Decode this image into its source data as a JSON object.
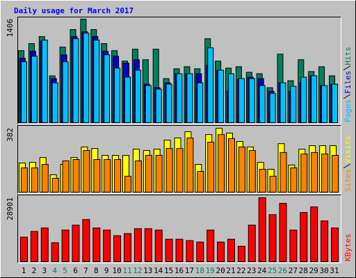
{
  "title": "Daily usage for March 2017",
  "chart_data": [
    {
      "type": "bar",
      "ylim": [
        0,
        1406
      ],
      "yticks": [
        1406
      ],
      "series": [
        {
          "name": "Hits",
          "color": "#00805c",
          "values": [
            978,
            1074,
            1169,
            636,
            1026,
            1264,
            1406,
            1264,
            1074,
            978,
            836,
            998,
            855,
            998,
            598,
            732,
            760,
            732,
            1140,
            836,
            741,
            760,
            684,
            665,
            475,
            931,
            570,
            855,
            694,
            760,
            636
          ]
        },
        {
          "name": "Files",
          "color": "#0000d0",
          "values": [
            874,
            969,
            1112,
            598,
            922,
            1169,
            1235,
            1169,
            969,
            903,
            808,
            855,
            523,
            475,
            542,
            665,
            665,
            665,
            779,
            713,
            428,
            589,
            618,
            598,
            428,
            542,
            428,
            542,
            637,
            504,
            523
          ]
        },
        {
          "name": "Pages",
          "color": "#00c0ff",
          "values": [
            827,
            903,
            1121,
            541,
            827,
            1140,
            1216,
            1121,
            922,
            741,
            618,
            713,
            504,
            456,
            523,
            665,
            665,
            541,
            1017,
            713,
            665,
            599,
            599,
            504,
            399,
            541,
            494,
            618,
            637,
            504,
            523
          ]
        }
      ]
    },
    {
      "type": "bar",
      "ylim": [
        0,
        382
      ],
      "yticks": [
        382
      ],
      "series": [
        {
          "name": "Visits",
          "color": "#ffff00",
          "values": [
            174,
            178,
            207,
            104,
            166,
            207,
            270,
            261,
            220,
            220,
            220,
            257,
            249,
            257,
            311,
            324,
            361,
            166,
            344,
            382,
            353,
            303,
            270,
            178,
            137,
            290,
            162,
            257,
            278,
            278,
            278
          ]
        },
        {
          "name": "Sites",
          "color": "#ff8000",
          "values": [
            145,
            145,
            166,
            83,
            187,
            195,
            249,
            195,
            195,
            195,
            95,
            187,
            220,
            220,
            261,
            261,
            324,
            124,
            299,
            344,
            320,
            270,
            249,
            137,
            95,
            237,
            145,
            228,
            237,
            228,
            220
          ]
        }
      ]
    },
    {
      "type": "bar",
      "ylim": [
        0,
        28901
      ],
      "yticks": [
        28901
      ],
      "categories": [
        "1",
        "2",
        "3",
        "4",
        "5",
        "6",
        "7",
        "8",
        "9",
        "10",
        "11",
        "12",
        "13",
        "14",
        "15",
        "16",
        "17",
        "18",
        "19",
        "20",
        "21",
        "22",
        "23",
        "24",
        "25",
        "26",
        "27",
        "28",
        "29",
        "30",
        "31"
      ],
      "category_colors": [
        "#000000",
        "#000000",
        "#000000",
        "#00805c",
        "#00805c",
        "#000000",
        "#000000",
        "#000000",
        "#000000",
        "#000000",
        "#00805c",
        "#00805c",
        "#000000",
        "#000000",
        "#000000",
        "#000000",
        "#000000",
        "#00805c",
        "#00805c",
        "#000000",
        "#000000",
        "#000000",
        "#000000",
        "#000000",
        "#00805c",
        "#00805c",
        "#000000",
        "#000000",
        "#000000",
        "#000000",
        "#000000"
      ],
      "series": [
        {
          "name": "KBytes",
          "color": "#ff0000",
          "values": [
            11116,
            13658,
            15245,
            8575,
            14292,
            16515,
            19056,
            15245,
            14292,
            11752,
            12704,
            14927,
            14927,
            14292,
            10164,
            10164,
            9528,
            8893,
            14292,
            8893,
            10164,
            6988,
            16515,
            28901,
            21280,
            26361,
            14292,
            22233,
            24774,
            18421,
            15245
          ]
        }
      ]
    }
  ]
}
